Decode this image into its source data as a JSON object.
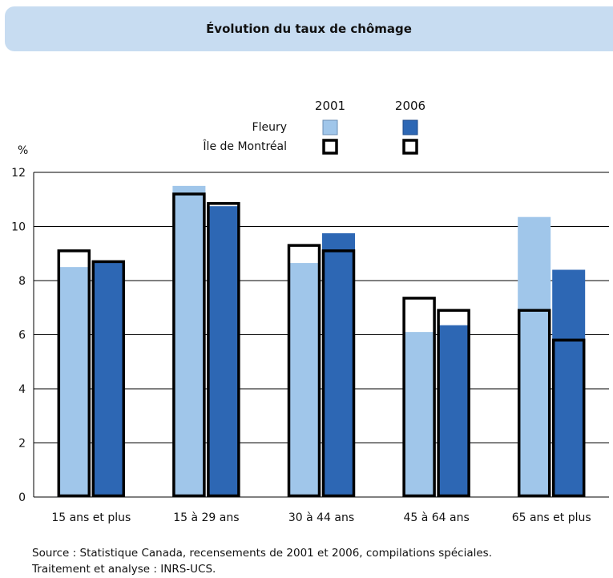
{
  "chart_data": {
    "type": "bar",
    "title": "Évolution du taux de chômage",
    "ylabel": "%",
    "ylim": [
      0,
      12
    ],
    "yticks": [
      0,
      2,
      4,
      6,
      8,
      10,
      12
    ],
    "categories": [
      "15 ans et plus",
      "15 à 29 ans",
      "30 à 44 ans",
      "45 à 64 ans",
      "65 ans et plus"
    ],
    "years": [
      "2001",
      "2006"
    ],
    "legend_rows": [
      "Fleury",
      "Île de Montréal"
    ],
    "series": [
      {
        "name": "Fleury",
        "year": "2001",
        "values": [
          8.5,
          11.5,
          8.65,
          6.1,
          10.35
        ],
        "color": "#a0c6ea"
      },
      {
        "name": "Fleury",
        "year": "2006",
        "values": [
          8.7,
          10.75,
          9.75,
          6.35,
          8.4
        ],
        "color": "#2d67b4"
      },
      {
        "name": "Île de Montréal",
        "year": "2001",
        "values": [
          9.1,
          11.2,
          9.3,
          7.35,
          6.9
        ],
        "color": "#000000"
      },
      {
        "name": "Île de Montréal",
        "year": "2006",
        "values": [
          8.7,
          10.85,
          9.1,
          6.9,
          5.8
        ],
        "color": "#000000"
      }
    ],
    "grid": true,
    "legend_position": "top"
  },
  "source": {
    "line1": "Source : Statistique Canada, recensements de 2001 et 2006, compilations spéciales.",
    "line2": "Traitement et analyse : INRS-UCS."
  }
}
